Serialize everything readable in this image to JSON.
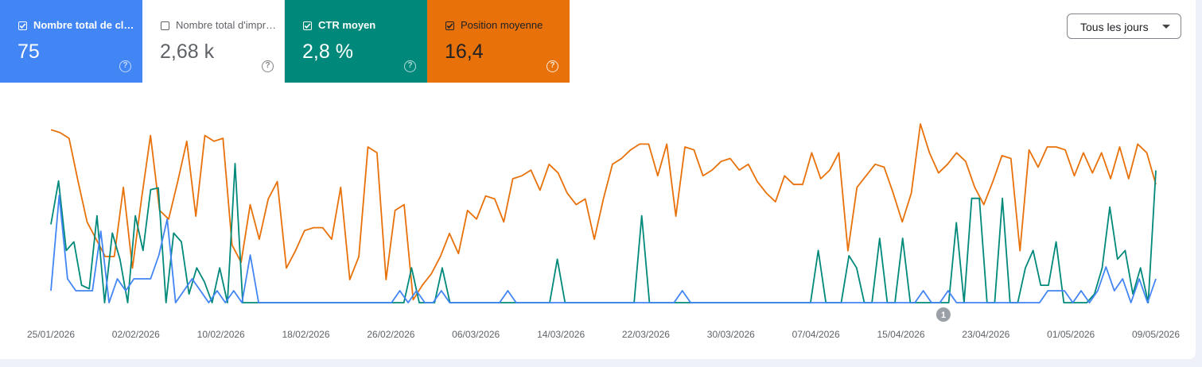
{
  "metrics": [
    {
      "label": "Nombre total de clics",
      "value": "75",
      "checked": true,
      "color": "#4285f4"
    },
    {
      "label": "Nombre total d'impressions",
      "value": "2,68 k",
      "checked": false,
      "color": "#ffffff"
    },
    {
      "label": "CTR moyen",
      "value": "2,8 %",
      "checked": true,
      "color": "#00897b"
    },
    {
      "label": "Position moyenne",
      "value": "16,4",
      "checked": true,
      "color": "#e8710a"
    }
  ],
  "help_icon": "?",
  "period_select": {
    "label": "Tous les jours"
  },
  "annotation_marker": {
    "label": "1",
    "date": "19/04/2026"
  },
  "chart_data": {
    "type": "line",
    "x_start": "25/01/2026",
    "x_end": "09/05/2026",
    "x_tick_labels": [
      "25/01/2026",
      "02/02/2026",
      "10/02/2026",
      "18/02/2026",
      "26/02/2026",
      "06/03/2026",
      "14/03/2026",
      "22/03/2026",
      "30/03/2026",
      "07/04/2026",
      "15/04/2026",
      "23/04/2026",
      "01/05/2026",
      "09/05/2026"
    ],
    "series": [
      {
        "name": "Position moyenne",
        "color": "#e8710a",
        "values": [
          7,
          7.5,
          8.5,
          16,
          23,
          26,
          29,
          29,
          17,
          31,
          19,
          8,
          21,
          22.5,
          16,
          9,
          22,
          8,
          9,
          8.5,
          27,
          30,
          20,
          26,
          19,
          16,
          31,
          28,
          24.5,
          24,
          24,
          26,
          17,
          33,
          29,
          10,
          11,
          33,
          21,
          20,
          36.5,
          34,
          32,
          29,
          25,
          28.5,
          21,
          22.5,
          18.5,
          19,
          23,
          15.5,
          15,
          14,
          17.5,
          13,
          14.5,
          18,
          20,
          19,
          26,
          19,
          13,
          12,
          10.5,
          9.5,
          9.5,
          15,
          9.5,
          22,
          10,
          10.5,
          15,
          14,
          12.5,
          12,
          14,
          13,
          16,
          18,
          19.5,
          15,
          16.5,
          16.5,
          11,
          15.5,
          14,
          11,
          28,
          17,
          15,
          13,
          13.5,
          18,
          23,
          18,
          6,
          11,
          14.5,
          13,
          11,
          12.5,
          17,
          20,
          16,
          11.5,
          12,
          28,
          10.5,
          13.5,
          10,
          10,
          10.5,
          15,
          11,
          14.5,
          11,
          15.5,
          10,
          15.5,
          9.5,
          11,
          16.5
        ]
      },
      {
        "name": "CTR moyen",
        "color": "#00897b",
        "values": [
          0.45,
          0.7,
          0.3,
          0.35,
          0.1,
          0.08,
          0.5,
          0,
          0.4,
          0.25,
          0,
          0.5,
          0.3,
          0.65,
          0.66,
          0,
          0.4,
          0.35,
          0.05,
          0.2,
          0.12,
          0,
          0.2,
          0,
          0.8,
          0,
          0,
          0,
          0,
          0,
          0,
          0,
          0,
          0,
          0,
          0,
          0,
          0,
          0,
          0,
          0,
          0,
          0,
          0,
          0,
          0,
          0,
          0.2,
          0,
          0,
          0,
          0.2,
          0,
          0,
          0,
          0,
          0,
          0,
          0,
          0,
          0,
          0,
          0,
          0,
          0,
          0,
          0.25,
          0,
          0,
          0,
          0,
          0,
          0,
          0,
          0,
          0,
          0,
          0.5,
          0,
          0,
          0,
          0,
          0,
          0,
          0,
          0,
          0,
          0,
          0,
          0,
          0,
          0,
          0,
          0,
          0,
          0,
          0,
          0,
          0,
          0,
          0.3,
          0,
          0,
          0,
          0.27,
          0.2,
          0,
          0,
          0.37,
          0,
          0,
          0.37,
          0,
          0,
          0,
          0,
          0,
          0,
          0.46,
          0,
          0.6,
          0.6,
          0,
          0,
          0.6,
          0,
          0,
          0.2,
          0.3,
          0.1,
          0.1,
          0.35,
          0,
          0,
          0,
          0,
          0.05,
          0.2,
          0.55,
          0.25,
          0.3,
          0.05,
          0.2,
          0,
          0.76
        ]
      },
      {
        "name": "Nombre total de clics",
        "color": "#4285f4",
        "values": [
          1,
          9,
          2,
          1,
          1,
          1,
          6,
          0,
          2,
          1,
          2,
          2,
          2,
          4,
          7,
          0,
          1,
          2,
          1,
          0,
          1,
          0,
          1,
          0,
          4,
          0,
          0,
          0,
          0,
          0,
          0,
          0,
          0,
          0,
          0,
          0,
          0,
          0,
          0,
          0,
          0,
          0,
          1,
          0,
          1,
          0,
          0,
          1,
          0,
          0,
          0,
          0,
          0,
          0,
          0,
          1,
          0,
          0,
          0,
          0,
          0,
          0,
          0,
          0,
          0,
          0,
          0,
          0,
          0,
          0,
          0,
          0,
          0,
          0,
          0,
          0,
          1,
          0,
          0,
          0,
          0,
          0,
          0,
          0,
          0,
          0,
          0,
          0,
          0,
          0,
          0,
          0,
          0,
          0,
          0,
          0,
          0,
          0,
          0,
          0,
          0,
          0,
          0,
          0,
          0,
          1,
          0,
          0,
          1,
          0,
          0,
          0,
          0,
          0,
          0,
          0,
          0,
          0,
          0,
          0,
          1,
          1,
          1,
          0,
          1,
          0,
          1,
          3,
          1,
          2,
          0,
          2,
          0,
          2
        ]
      }
    ]
  }
}
